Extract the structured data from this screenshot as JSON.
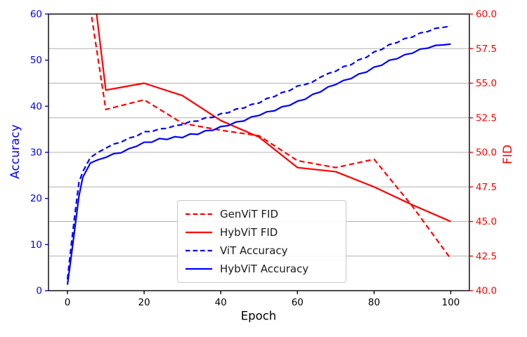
{
  "figure": {
    "xlabel": "Epoch",
    "ylabel_left": "Accuracy",
    "ylabel_right": "FID"
  },
  "chart_data": {
    "type": "line",
    "title": "",
    "xlabel": "Epoch",
    "ylabel_left": "Accuracy",
    "ylabel_right": "FID",
    "xlim": [
      -5,
      105
    ],
    "ylim_left": [
      0,
      60
    ],
    "ylim_right": [
      40.0,
      60.0
    ],
    "grid": "horizontal gridlines at right-axis (FID) ticks",
    "legend_position": "lower center-left box",
    "axis_colors": {
      "left": "#0000ff",
      "right": "#ff0000",
      "x": "#000000"
    },
    "grid_color": "#b0b0b0",
    "spine_color": "#000000",
    "xticks": {
      "values": [
        0,
        20,
        40,
        60,
        80,
        100
      ],
      "labels": [
        "0",
        "20",
        "40",
        "60",
        "80",
        "100"
      ]
    },
    "yticks_left": {
      "values": [
        0,
        10,
        20,
        30,
        40,
        50,
        60
      ],
      "labels": [
        "0",
        "10",
        "20",
        "30",
        "40",
        "50",
        "60"
      ]
    },
    "yticks_right": {
      "values": [
        40,
        42.5,
        45,
        47.5,
        50,
        52.5,
        55,
        57.5,
        60
      ],
      "labels": [
        "40.0",
        "42.5",
        "45.0",
        "47.5",
        "50.0",
        "52.5",
        "55.0",
        "57.5",
        "60.0"
      ]
    },
    "series": [
      {
        "name": "GenViT FID",
        "axis": "right",
        "color": "#ff0000",
        "style": "dashed",
        "x": [
          5,
          10,
          20,
          30,
          40,
          50,
          60,
          70,
          80,
          90,
          100
        ],
        "y": [
          62.2,
          53.1,
          53.8,
          52.1,
          51.6,
          51.2,
          49.4,
          48.9,
          49.5,
          46.1,
          42.3
        ]
      },
      {
        "name": "HybViT FID",
        "axis": "right",
        "color": "#ff0000",
        "style": "solid",
        "x": [
          5,
          10,
          20,
          30,
          40,
          50,
          60,
          70,
          80,
          90,
          100
        ],
        "y": [
          66.0,
          54.5,
          55.0,
          54.1,
          52.3,
          51.1,
          48.9,
          48.6,
          47.5,
          46.2,
          45.0
        ]
      },
      {
        "name": "ViT Accuracy",
        "axis": "left",
        "color": "#0000ff",
        "style": "dashed",
        "x": [
          0,
          1,
          2,
          3,
          4,
          6,
          8,
          10,
          12,
          14,
          16,
          18,
          20,
          22,
          24,
          26,
          28,
          30,
          32,
          34,
          36,
          38,
          40,
          42,
          44,
          46,
          48,
          50,
          52,
          54,
          56,
          58,
          60,
          62,
          64,
          66,
          68,
          70,
          72,
          74,
          76,
          78,
          80,
          82,
          84,
          86,
          88,
          90,
          92,
          94,
          96,
          98,
          100
        ],
        "y": [
          2.5,
          10.0,
          17.0,
          23.5,
          25.8,
          28.9,
          30.0,
          30.9,
          31.8,
          32.2,
          33.1,
          33.5,
          34.5,
          34.5,
          35.1,
          35.2,
          35.8,
          36.0,
          36.7,
          36.8,
          37.5,
          37.6,
          38.4,
          38.6,
          39.4,
          39.6,
          40.4,
          40.7,
          41.7,
          42.1,
          43.0,
          43.4,
          44.4,
          44.7,
          45.3,
          46.3,
          47.1,
          47.6,
          48.6,
          49.0,
          50.1,
          50.6,
          51.8,
          52.3,
          53.4,
          53.8,
          54.7,
          55.0,
          55.9,
          56.2,
          56.9,
          57.1,
          57.4
        ]
      },
      {
        "name": "HybViT Accuracy",
        "axis": "left",
        "color": "#0000ff",
        "style": "solid",
        "x": [
          0,
          1,
          2,
          3,
          4,
          6,
          8,
          10,
          12,
          14,
          16,
          18,
          20,
          22,
          24,
          26,
          28,
          30,
          32,
          34,
          36,
          38,
          40,
          42,
          44,
          46,
          48,
          50,
          52,
          54,
          56,
          58,
          60,
          62,
          64,
          66,
          68,
          70,
          72,
          74,
          76,
          78,
          80,
          82,
          84,
          86,
          88,
          90,
          92,
          94,
          96,
          98,
          100
        ],
        "y": [
          1.3,
          7.5,
          14.0,
          20.5,
          24.6,
          27.7,
          28.4,
          28.9,
          29.7,
          29.9,
          30.8,
          31.3,
          32.2,
          32.2,
          33.0,
          32.8,
          33.4,
          33.2,
          34.0,
          33.9,
          34.7,
          34.8,
          35.6,
          35.8,
          36.6,
          36.8,
          37.7,
          38.0,
          38.8,
          39.0,
          39.9,
          40.2,
          41.1,
          41.5,
          42.6,
          43.1,
          44.2,
          44.7,
          45.6,
          46.0,
          47.0,
          47.4,
          48.5,
          48.9,
          50.0,
          50.3,
          51.2,
          51.5,
          52.4,
          52.6,
          53.2,
          53.3,
          53.5
        ]
      }
    ],
    "legend": {
      "items": [
        {
          "label": "GenViT FID"
        },
        {
          "label": "HybViT FID"
        },
        {
          "label": "ViT Accuracy"
        },
        {
          "label": "HybViT Accuracy"
        }
      ]
    }
  }
}
